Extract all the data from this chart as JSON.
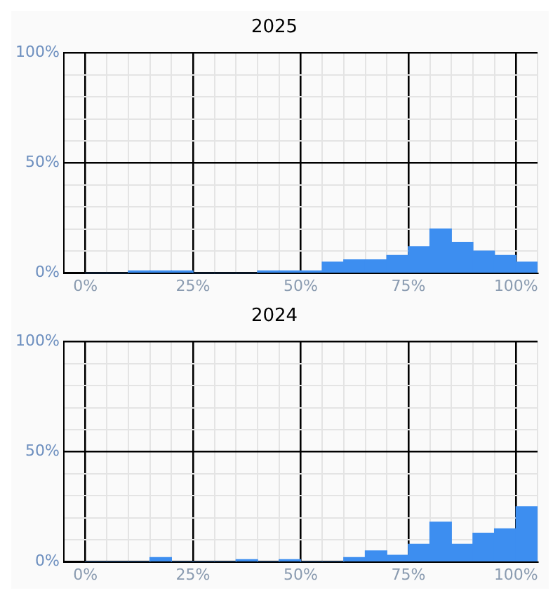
{
  "chart_data": [
    {
      "type": "histogram",
      "title": "2025",
      "bins": [
        0,
        5,
        10,
        15,
        20,
        25,
        30,
        35,
        40,
        45,
        50,
        55,
        60,
        65,
        70,
        75,
        80,
        85,
        90,
        95,
        100,
        105
      ],
      "values": [
        0,
        0,
        1,
        1,
        1,
        0,
        0,
        0,
        1,
        1,
        1,
        5,
        6,
        6,
        8,
        12,
        20,
        14,
        10,
        8,
        5
      ],
      "color": "#3d8ef0",
      "xlim": [
        -5,
        105
      ],
      "xticks": [
        {
          "value": 0,
          "label": "0%"
        },
        {
          "value": 25,
          "label": "25%"
        },
        {
          "value": 50,
          "label": "50%"
        },
        {
          "value": 75,
          "label": "75%"
        },
        {
          "value": 100,
          "label": "100%"
        }
      ],
      "ylim": [
        0,
        100
      ],
      "yticks": [
        {
          "value": 0,
          "label": "0%"
        },
        {
          "value": 10,
          "label": null
        },
        {
          "value": 20,
          "label": null
        },
        {
          "value": 30,
          "label": null
        },
        {
          "value": 40,
          "label": null
        },
        {
          "value": 50,
          "label": "50%"
        },
        {
          "value": 60,
          "label": null
        },
        {
          "value": 70,
          "label": null
        },
        {
          "value": 80,
          "label": null
        },
        {
          "value": 90,
          "label": null
        },
        {
          "value": 100,
          "label": "100%"
        }
      ],
      "grid": true,
      "legend": false
    },
    {
      "type": "histogram",
      "title": "2024",
      "bins": [
        0,
        5,
        10,
        15,
        20,
        25,
        30,
        35,
        40,
        45,
        50,
        55,
        60,
        65,
        70,
        75,
        80,
        85,
        90,
        95,
        100,
        105
      ],
      "values": [
        0,
        0,
        0,
        2,
        0,
        0,
        0,
        1,
        0,
        1,
        0,
        0,
        2,
        5,
        3,
        8,
        18,
        8,
        13,
        15,
        25
      ],
      "color": "#3d8ef0",
      "xlim": [
        -5,
        105
      ],
      "xticks": [
        {
          "value": 0,
          "label": "0%"
        },
        {
          "value": 25,
          "label": "25%"
        },
        {
          "value": 50,
          "label": "50%"
        },
        {
          "value": 75,
          "label": "75%"
        },
        {
          "value": 100,
          "label": "100%"
        }
      ],
      "ylim": [
        0,
        100
      ],
      "yticks": [
        {
          "value": 0,
          "label": "0%"
        },
        {
          "value": 10,
          "label": null
        },
        {
          "value": 20,
          "label": null
        },
        {
          "value": 30,
          "label": null
        },
        {
          "value": 40,
          "label": null
        },
        {
          "value": 50,
          "label": "50%"
        },
        {
          "value": 60,
          "label": null
        },
        {
          "value": 70,
          "label": null
        },
        {
          "value": 80,
          "label": null
        },
        {
          "value": 90,
          "label": null
        },
        {
          "value": 100,
          "label": "100%"
        }
      ],
      "grid": true,
      "legend": false
    }
  ]
}
